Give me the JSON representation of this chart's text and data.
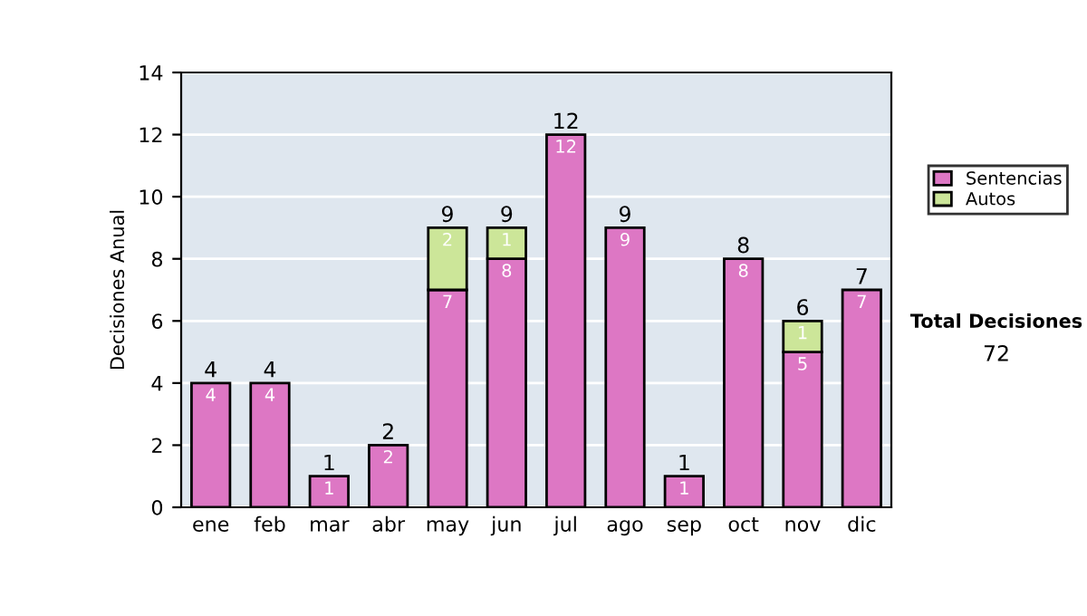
{
  "chart_data": {
    "type": "bar",
    "stacked": true,
    "ylabel": "Decisiones Anual",
    "categories": [
      "ene",
      "feb",
      "mar",
      "abr",
      "may",
      "jun",
      "jul",
      "ago",
      "sep",
      "oct",
      "nov",
      "dic"
    ],
    "series": [
      {
        "name": "Sentencias",
        "color": "#dd77c4",
        "values": [
          4,
          4,
          1,
          2,
          7,
          8,
          12,
          9,
          1,
          8,
          5,
          7
        ],
        "value_labels": [
          "4",
          "4",
          "1",
          "2",
          "7",
          "8",
          "12",
          "9",
          "1",
          "8",
          "5",
          "7"
        ]
      },
      {
        "name": "Autos",
        "color": "#cce699",
        "values": [
          null,
          null,
          null,
          null,
          2,
          1,
          null,
          null,
          null,
          null,
          1,
          null
        ],
        "value_labels": [
          null,
          null,
          null,
          null,
          "2",
          "1",
          null,
          null,
          null,
          null,
          "1",
          null
        ]
      }
    ],
    "totals": [
      "4",
      "4",
      "1",
      "2",
      "9",
      "9",
      "12",
      "9",
      "1",
      "8",
      "6",
      "7"
    ],
    "ylim": [
      0,
      14
    ],
    "yticks": [
      0,
      2,
      4,
      6,
      8,
      10,
      12,
      14
    ],
    "grid": "y",
    "legend": "right",
    "annotations": [
      "Total Decisiones",
      "72"
    ]
  }
}
